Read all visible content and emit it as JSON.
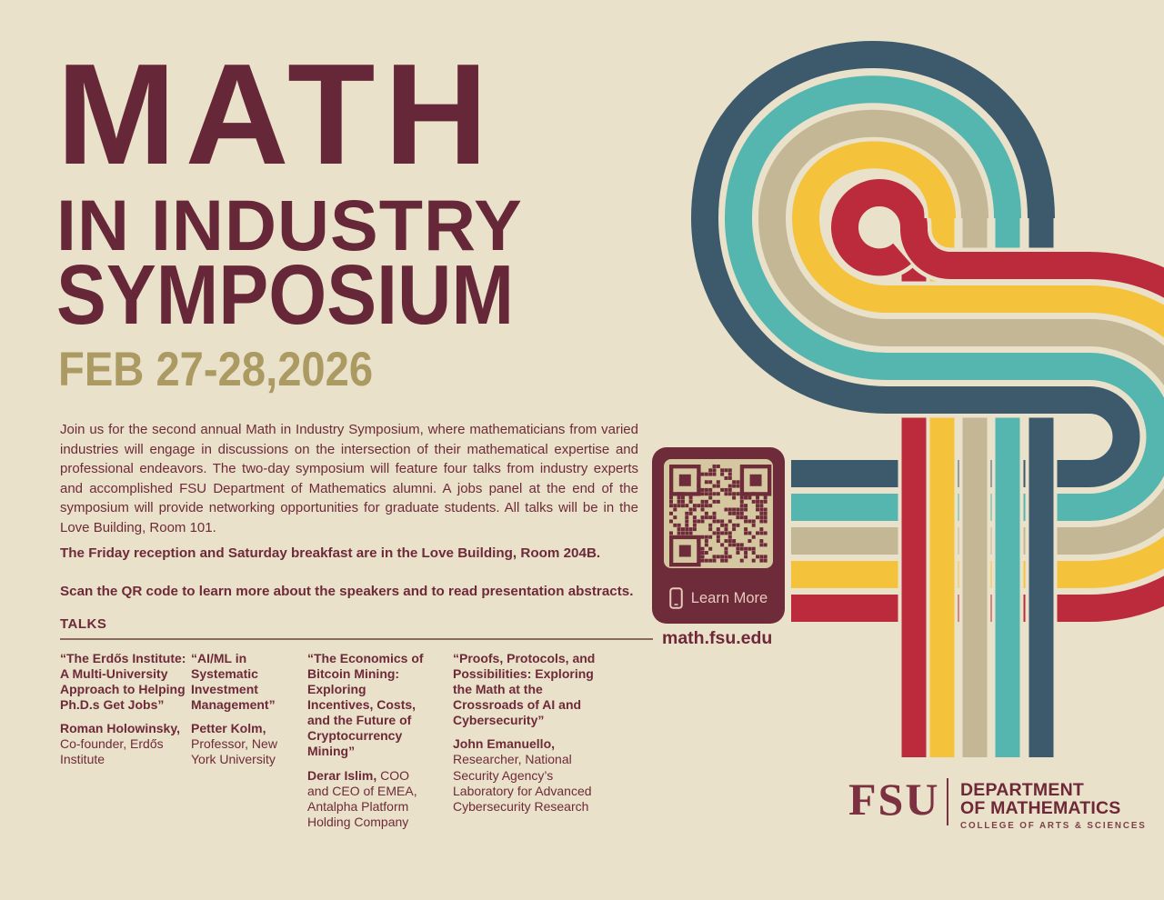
{
  "poster": {
    "title_line1": "MATH",
    "title_line2": "IN INDUSTRY",
    "title_line3": "SYMPOSIUM",
    "date": "FEB 27-28,2026",
    "intro": "Join us for the second annual Math in Industry Symposium, where mathematicians from varied industries will engage in discussions on the intersection of their mathematical expertise and professional endeavors. The two-day symposium will feature four talks from industry experts and accomplished FSU Department of Mathematics alumni. A jobs panel at the end of the symposium will provide networking opportunities for graduate students. All talks will be in the Love Building, Room 101.",
    "note_rooms": "The Friday reception and Saturday breakfast are in the Love Building, Room 204B.",
    "note_qr": "Scan the QR code to learn more about the speakers and to read presentation abstracts.",
    "talks_heading": "TALKS"
  },
  "talks": [
    {
      "title": "“The Erdős Institute: A Multi-University Approach to Helping Ph.D.s Get Jobs”",
      "speaker": "Roman Holowinsky,",
      "affiliation": "Co-founder, Erdős Institute"
    },
    {
      "title": "“AI/ML in Systematic Investment Management”",
      "speaker": "Petter Kolm,",
      "affiliation": "Professor, New York University"
    },
    {
      "title": "“The Economics of Bitcoin Mining: Exploring Incentives, Costs, and the Future of Cryptocurrency Mining”",
      "speaker": "Derar Islim,",
      "affiliation": "COO and CEO of EMEA, Antalpha Platform Holding Company"
    },
    {
      "title": "“Proofs, Protocols, and Possibilities: Exploring the Math at the Crossroads of AI and Cybersecurity”",
      "speaker": "John Emanuello,",
      "affiliation": "Researcher, National Security Agency’s Laboratory for Advanced Cybersecurity Research"
    }
  ],
  "qr": {
    "label": "Learn More",
    "url": "math.fsu.edu"
  },
  "logo": {
    "fsu": "FSU",
    "dept_line1": "DEPARTMENT",
    "dept_line2": "OF MATHEMATICS",
    "college": "COLLEGE OF ARTS & SCIENCES"
  },
  "colors": {
    "cream": "#eae1cb",
    "navy": "#3d5a6d",
    "teal": "#54b6ae",
    "tan": "#c4b795",
    "yellow": "#f5c33b",
    "red": "#bc2b3c",
    "maroon_text": "#6e2a38",
    "title_maroon": "#662838",
    "date_gold": "#ab9a62",
    "qr_box_maroon": "#6e2b3a",
    "qr_panel_tan": "#d5c79f"
  }
}
